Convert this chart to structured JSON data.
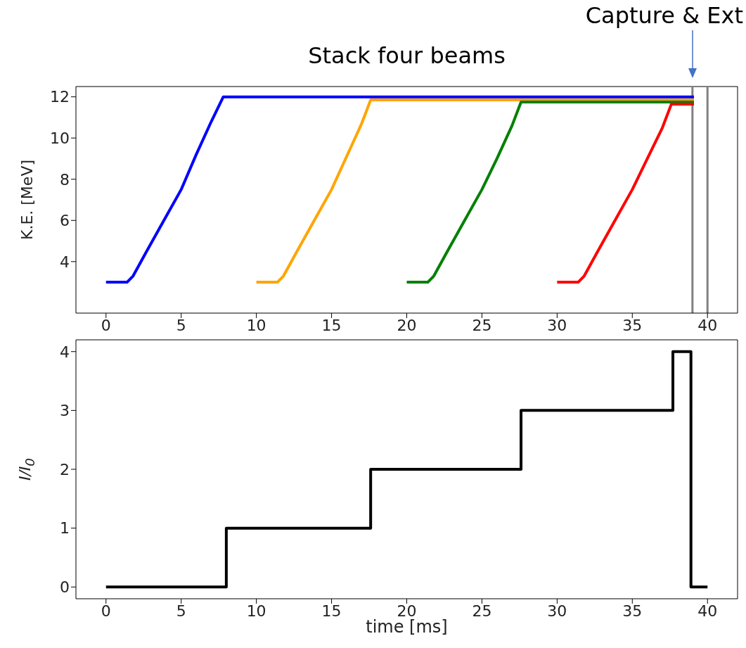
{
  "chart_data": [
    {
      "type": "line",
      "title": "Stack four beams",
      "ylabel": "K.E. [MeV]",
      "annotations": [
        "Capture & Ext"
      ],
      "xlim": [
        -2,
        42
      ],
      "xticks": [
        0,
        5,
        10,
        15,
        20,
        25,
        30,
        35,
        40
      ],
      "ylim": [
        1.5,
        12.5
      ],
      "yticks": [
        4,
        6,
        8,
        10,
        12
      ],
      "grid": false,
      "legend": false,
      "marker": "none",
      "line_style": "solid",
      "ref_lines": [
        {
          "axis": "x",
          "value": 39,
          "color": "#808080"
        },
        {
          "axis": "x",
          "value": 40,
          "color": "#808080"
        }
      ],
      "series": [
        {
          "color": "#0000ff",
          "x": [
            0,
            1.4,
            1.8,
            2.7,
            4.0,
            5.0,
            6.0,
            7.0,
            7.8,
            8.2,
            39.1
          ],
          "values": [
            3,
            3,
            3.3,
            4.5,
            6.2,
            7.5,
            9.2,
            10.8,
            12,
            12,
            12
          ]
        },
        {
          "color": "#ffa500",
          "x": [
            10,
            11.4,
            11.8,
            12.7,
            14.0,
            15.0,
            16.0,
            17.0,
            17.6,
            18.0,
            39.1
          ],
          "values": [
            3,
            3,
            3.3,
            4.5,
            6.2,
            7.5,
            9.1,
            10.7,
            11.85,
            11.85,
            11.85
          ]
        },
        {
          "color": "#008000",
          "x": [
            20,
            21.4,
            21.8,
            22.7,
            24.0,
            25.0,
            26.0,
            27.0,
            27.6,
            28.0,
            39.1
          ],
          "values": [
            3,
            3,
            3.3,
            4.5,
            6.2,
            7.5,
            9.0,
            10.6,
            11.75,
            11.75,
            11.75
          ]
        },
        {
          "color": "#ff0000",
          "x": [
            30,
            31.4,
            31.8,
            32.7,
            34.0,
            35.0,
            36.0,
            37.0,
            37.6,
            38.0,
            39.1
          ],
          "values": [
            3,
            3,
            3.3,
            4.5,
            6.2,
            7.5,
            9.0,
            10.5,
            11.65,
            11.65,
            11.65
          ]
        }
      ]
    },
    {
      "type": "step",
      "xlabel": "time [ms]",
      "ylabel": "I/I$_{0}$",
      "xlim": [
        -2,
        42
      ],
      "xticks": [
        0,
        5,
        10,
        15,
        20,
        25,
        30,
        35,
        40
      ],
      "ylim": [
        -0.2,
        4.2
      ],
      "yticks": [
        0,
        1,
        2,
        3,
        4
      ],
      "grid": false,
      "legend": false,
      "marker": "none",
      "line_style": "solid",
      "series": [
        {
          "color": "#000000",
          "x": [
            0,
            8,
            17.6,
            27.6,
            37.7,
            38.9,
            40
          ],
          "values": [
            0,
            1,
            2,
            3,
            4,
            0,
            0
          ]
        }
      ]
    }
  ]
}
